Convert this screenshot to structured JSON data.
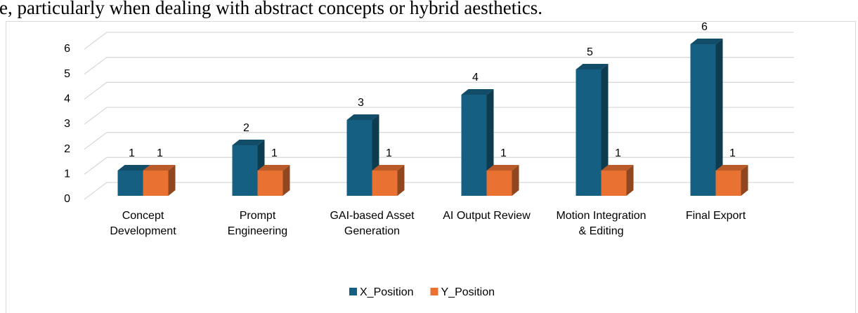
{
  "text_above": "e, particularly when dealing with abstract concepts or hybrid aesthetics.",
  "chart_data": {
    "type": "bar3d",
    "categories": [
      "Concept Development",
      "Prompt Engineering",
      "GAI-based Asset Generation",
      "AI Output Review",
      "Motion Integration & Editing",
      "Final Export"
    ],
    "series": [
      {
        "name": "X_Position",
        "color": "#156082",
        "values": [
          1,
          2,
          3,
          4,
          5,
          6
        ]
      },
      {
        "name": "Y_Position",
        "color": "#e97132",
        "values": [
          1,
          1,
          1,
          1,
          1,
          1
        ]
      }
    ],
    "ylim": [
      0,
      6
    ],
    "yticks": [
      0,
      1,
      2,
      3,
      4,
      5,
      6
    ],
    "grid": true,
    "legend": "bottom"
  }
}
